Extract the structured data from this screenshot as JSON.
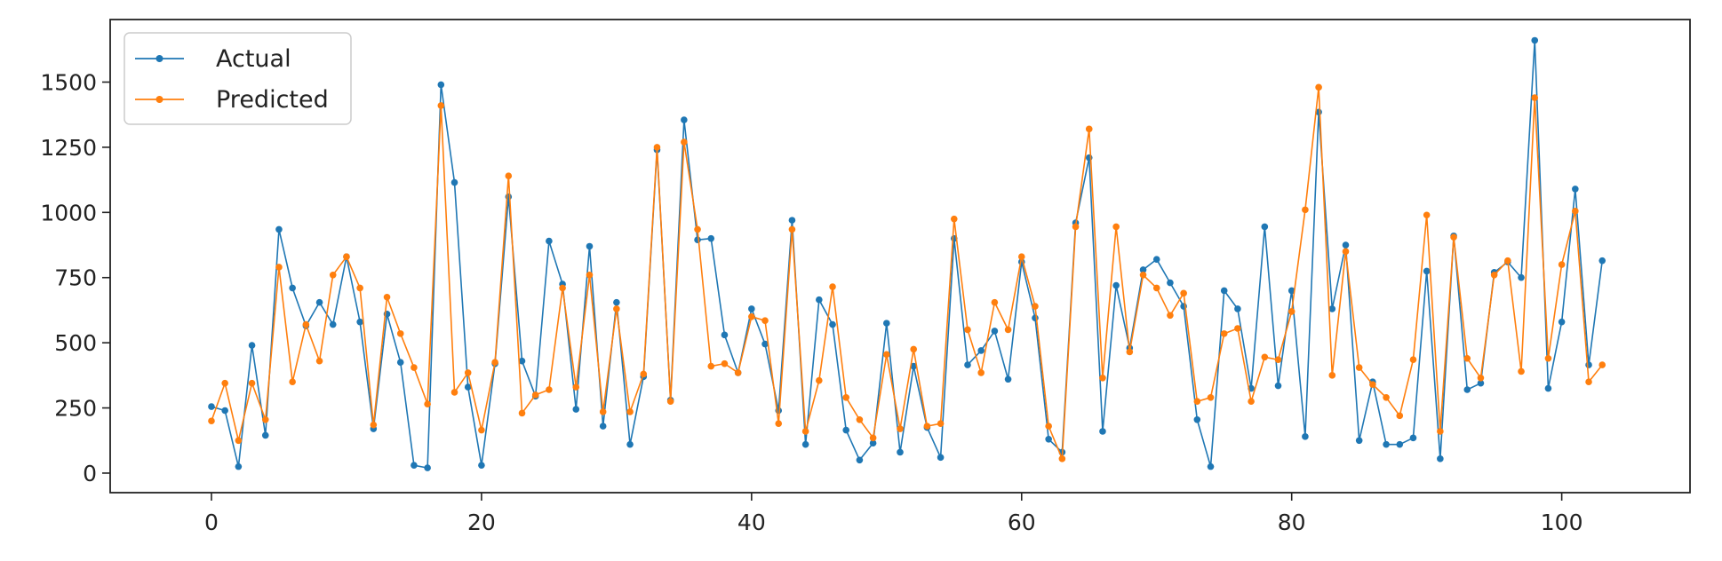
{
  "chart_data": {
    "type": "line",
    "title": "",
    "xlabel": "",
    "ylabel": "",
    "xlim": [
      -7.5,
      109.5
    ],
    "ylim": [
      -75,
      1740
    ],
    "xticks": [
      0,
      20,
      40,
      60,
      80,
      100
    ],
    "yticks": [
      0,
      250,
      500,
      750,
      1000,
      1250,
      1500
    ],
    "grid": false,
    "legend_position": "top-left",
    "series": [
      {
        "name": "Actual",
        "color": "#1f77b4",
        "values": [
          255,
          240,
          25,
          490,
          145,
          935,
          710,
          565,
          655,
          570,
          830,
          580,
          170,
          610,
          425,
          30,
          20,
          1490,
          1115,
          330,
          30,
          420,
          1060,
          430,
          295,
          890,
          725,
          245,
          870,
          180,
          655,
          110,
          370,
          1240,
          280,
          1355,
          895,
          900,
          530,
          385,
          630,
          495,
          240,
          970,
          110,
          665,
          570,
          165,
          50,
          115,
          575,
          80,
          410,
          175,
          60,
          900,
          415,
          470,
          545,
          360,
          810,
          595,
          130,
          80,
          960,
          1210,
          160,
          720,
          480,
          780,
          820,
          730,
          640,
          205,
          25,
          700,
          630,
          325,
          945,
          335,
          700,
          140,
          1385,
          630,
          875,
          125,
          350,
          110,
          110,
          135,
          775,
          55,
          910,
          320,
          345,
          770,
          810,
          750,
          1660,
          325,
          580,
          1090,
          415,
          815
        ]
      },
      {
        "name": "Predicted",
        "color": "#ff7f0e",
        "values": [
          200,
          345,
          125,
          345,
          205,
          790,
          350,
          570,
          430,
          760,
          830,
          710,
          185,
          675,
          535,
          405,
          265,
          1410,
          310,
          385,
          165,
          425,
          1140,
          230,
          300,
          320,
          710,
          330,
          760,
          235,
          630,
          235,
          380,
          1250,
          275,
          1270,
          935,
          410,
          420,
          385,
          600,
          585,
          190,
          935,
          160,
          355,
          715,
          290,
          205,
          135,
          455,
          170,
          475,
          180,
          190,
          975,
          550,
          385,
          655,
          550,
          830,
          640,
          180,
          55,
          945,
          1320,
          365,
          945,
          465,
          760,
          710,
          605,
          690,
          275,
          290,
          535,
          555,
          275,
          445,
          435,
          620,
          1010,
          1480,
          375,
          850,
          405,
          340,
          290,
          220,
          435,
          990,
          160,
          905,
          440,
          365,
          760,
          815,
          390,
          1440,
          440,
          800,
          1005,
          350,
          415
        ]
      }
    ]
  }
}
